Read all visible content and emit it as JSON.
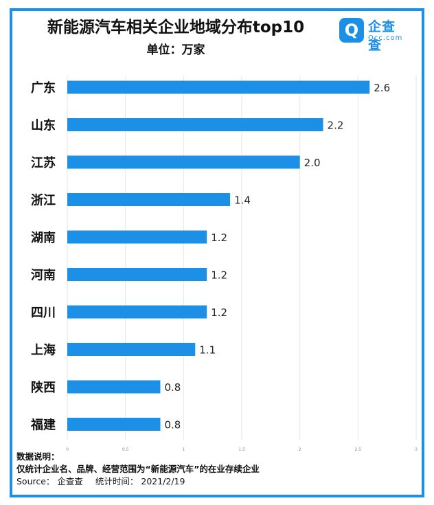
{
  "header": {
    "title": "新能源汽车相关企业地域分布top10",
    "subtitle": "单位：万家"
  },
  "logo": {
    "mark_glyph": "Q",
    "name_cn": "企查查",
    "name_en": "Qcc.com",
    "color": "#1c8fe6"
  },
  "chart_data": {
    "type": "bar",
    "orientation": "horizontal",
    "categories": [
      "广东",
      "山东",
      "江苏",
      "浙江",
      "湖南",
      "河南",
      "四川",
      "上海",
      "陕西",
      "福建"
    ],
    "values": [
      2.6,
      2.2,
      2.0,
      1.4,
      1.2,
      1.2,
      1.2,
      1.1,
      0.8,
      0.8
    ],
    "value_labels": [
      "2.6",
      "2.2",
      "2.0",
      "1.4",
      "1.2",
      "1.2",
      "1.2",
      "1.1",
      "0.8",
      "0.8"
    ],
    "xlim": [
      0,
      3
    ],
    "x_ticks": [
      "0",
      "0.5",
      "1",
      "1.5",
      "2",
      "2.5",
      "3"
    ],
    "x_tick_values": [
      0,
      0.5,
      1,
      1.5,
      2,
      2.5,
      3
    ],
    "grid": true,
    "bar_color": "#1c8fe6",
    "grid_color": "#e6e6e6"
  },
  "notes": {
    "heading": "数据说明：",
    "line1": "仅统计企业名、品牌、经营范围为“新能源汽车”的在业存续企业",
    "source": "Source：  企查查",
    "date": "统计时间：  2021/2/19"
  },
  "frame_color": "#1c8fe6"
}
